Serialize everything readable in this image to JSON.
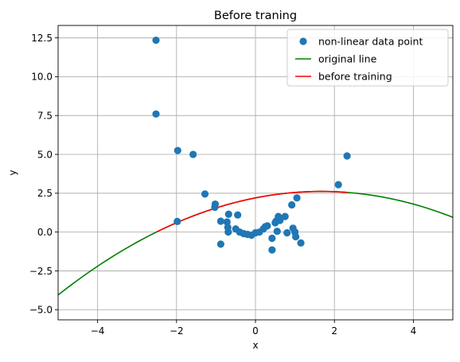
{
  "chart_data": {
    "type": "scatter",
    "title": "Before traning",
    "xlabel": "x",
    "ylabel": "y",
    "xlim": [
      -5,
      5
    ],
    "ylim": [
      -5.65,
      13.3
    ],
    "xticks": [
      -4,
      -2,
      0,
      2,
      4
    ],
    "xtick_labels": [
      "−4",
      "−2",
      "0",
      "2",
      "4"
    ],
    "yticks": [
      -5.0,
      -2.5,
      0.0,
      2.5,
      5.0,
      7.5,
      10.0,
      12.5
    ],
    "ytick_labels": [
      "−5.0",
      "−2.5",
      "0.0",
      "2.5",
      "5.0",
      "7.5",
      "10.0",
      "12.5"
    ],
    "grid": true,
    "legend_position": "top-right",
    "series": [
      {
        "name": "non-linear data point",
        "kind": "scatter",
        "color": "#1f77b4",
        "points": [
          [
            -2.52,
            12.35
          ],
          [
            -2.52,
            7.6
          ],
          [
            -1.97,
            5.25
          ],
          [
            -1.58,
            5.0
          ],
          [
            -1.28,
            2.45
          ],
          [
            -1.98,
            0.68
          ],
          [
            -1.02,
            1.8
          ],
          [
            -1.03,
            1.6
          ],
          [
            -0.88,
            0.7
          ],
          [
            -0.88,
            -0.78
          ],
          [
            -0.68,
            1.15
          ],
          [
            -0.72,
            0.65
          ],
          [
            -0.7,
            0.3
          ],
          [
            -0.69,
            0.0
          ],
          [
            -0.45,
            1.1
          ],
          [
            -0.5,
            0.2
          ],
          [
            -0.4,
            0.0
          ],
          [
            -0.3,
            -0.1
          ],
          [
            -0.2,
            -0.15
          ],
          [
            -0.1,
            -0.2
          ],
          [
            0.0,
            -0.05
          ],
          [
            0.1,
            0.0
          ],
          [
            0.2,
            0.2
          ],
          [
            0.25,
            0.35
          ],
          [
            0.3,
            0.4
          ],
          [
            0.42,
            -0.4
          ],
          [
            0.42,
            -1.15
          ],
          [
            0.5,
            0.6
          ],
          [
            0.52,
            0.7
          ],
          [
            0.55,
            0.05
          ],
          [
            0.58,
            1.0
          ],
          [
            0.62,
            0.75
          ],
          [
            0.75,
            1.0
          ],
          [
            0.8,
            -0.05
          ],
          [
            0.92,
            1.75
          ],
          [
            0.95,
            0.25
          ],
          [
            1.0,
            0.0
          ],
          [
            1.02,
            -0.3
          ],
          [
            1.05,
            2.2
          ],
          [
            1.15,
            -0.7
          ],
          [
            2.1,
            3.05
          ],
          [
            2.32,
            4.9
          ]
        ]
      },
      {
        "name": "original line",
        "kind": "line",
        "color": "#008000",
        "coefficients": {
          "a": -0.15,
          "b": 0.5,
          "c": 2.2
        },
        "x_range": [
          -5,
          5
        ]
      },
      {
        "name": "before training",
        "kind": "line",
        "color": "#ff0000",
        "coefficients": {
          "a": -0.15,
          "b": 0.5,
          "c": 2.2
        },
        "x_range": [
          -2.5,
          2.32
        ]
      }
    ]
  }
}
